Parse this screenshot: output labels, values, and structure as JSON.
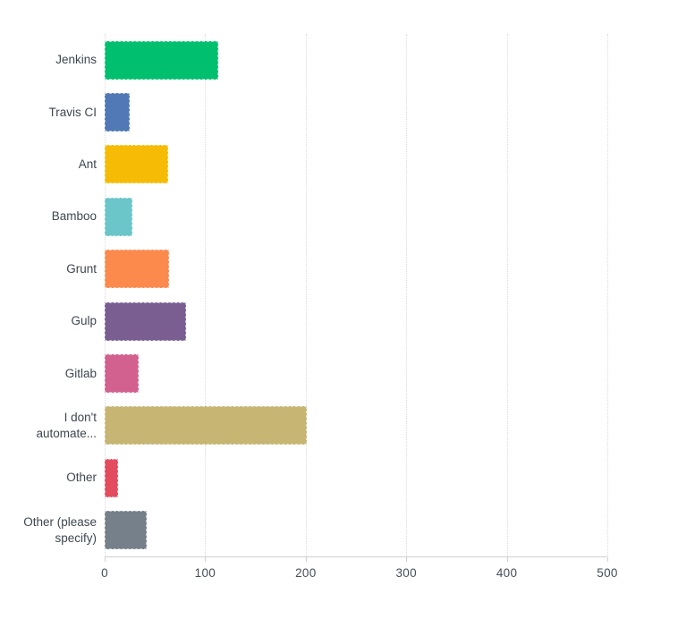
{
  "chart_data": {
    "type": "bar",
    "orientation": "horizontal",
    "title": "",
    "xlabel": "",
    "ylabel": "",
    "categories": [
      "Jenkins",
      "Travis CI",
      "Ant",
      "Bamboo",
      "Grunt",
      "Gulp",
      "Gitlab",
      "I don't automate...",
      "Other",
      "Other (please specify)"
    ],
    "values": [
      113,
      25,
      63,
      28,
      64,
      81,
      34,
      201,
      13,
      42
    ],
    "bar_colors": [
      "#00BF6F",
      "#5079B5",
      "#F6BC05",
      "#6BC6CA",
      "#FC8A4D",
      "#7A5E92",
      "#D2618F",
      "#C6B573",
      "#E24C5E",
      "#75808A"
    ],
    "xlim": [
      0,
      500
    ],
    "x_ticks": [
      "0",
      "100",
      "200",
      "300",
      "400",
      "500"
    ],
    "grid": "vertical-dotted",
    "legend": "none"
  },
  "styles": {
    "background": "#FFFFFF",
    "gridline_color": "#D9DBDE",
    "axis_color": "#CFD1D4",
    "category_label_color": "#3E4651",
    "tick_label_color": "#454D58"
  }
}
